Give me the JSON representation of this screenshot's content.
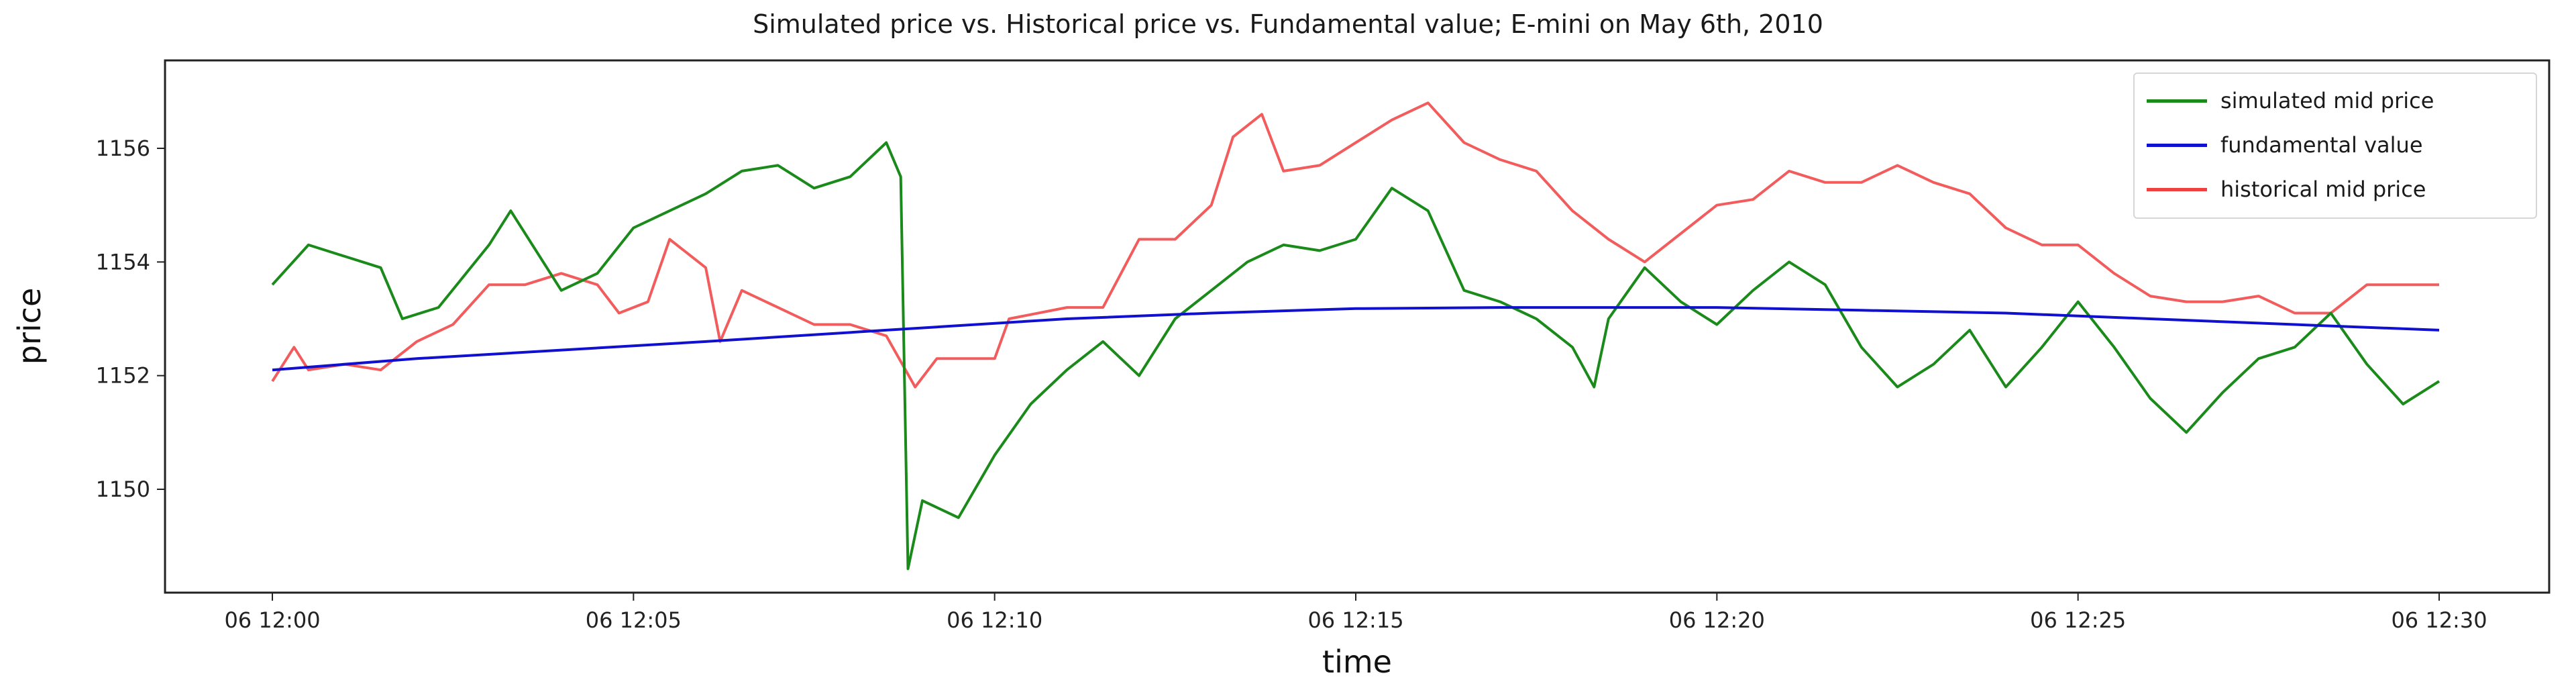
{
  "chart_data": {
    "type": "line",
    "title": "Simulated price vs. Historical price vs. Fundamental value; E-mini on May 6th, 2010",
    "xlabel": "time",
    "ylabel": "price",
    "x_unit": "minutes after 06 12:00",
    "xlim": [
      -1.5,
      31.5
    ],
    "ylim": [
      1147.9,
      1157.3
    ],
    "x_ticks": [
      0,
      5,
      10,
      15,
      20,
      25,
      30
    ],
    "x_tick_labels": [
      "06 12:00",
      "06 12:05",
      "06 12:10",
      "06 12:15",
      "06 12:20",
      "06 12:25",
      "06 12:30"
    ],
    "y_ticks": [
      1150,
      1152,
      1154,
      1156
    ],
    "y_tick_labels": [
      "1150",
      "1152",
      "1154",
      "1156"
    ],
    "grid": false,
    "legend_position": "upper right",
    "series": [
      {
        "name": "simulated mid price",
        "color": "#1a8a1a",
        "x": [
          0,
          0.5,
          1,
          1.5,
          1.8,
          2.3,
          3,
          3.3,
          4,
          4.5,
          5,
          5.5,
          6,
          6.5,
          7,
          7.5,
          8,
          8.5,
          8.7,
          8.8,
          9,
          9.5,
          10,
          10.5,
          11,
          11.5,
          12,
          12.5,
          13,
          13.5,
          14,
          14.5,
          15,
          15.5,
          16,
          16.5,
          17,
          17.5,
          18,
          18.3,
          18.5,
          19,
          19.5,
          20,
          20.5,
          21,
          21.5,
          22,
          22.5,
          23,
          23.5,
          24,
          24.5,
          25,
          25.5,
          26,
          26.5,
          27,
          27.5,
          28,
          28.5,
          29,
          29.5,
          30
        ],
        "values": [
          1153.6,
          1154.3,
          1154.1,
          1153.9,
          1153.0,
          1153.2,
          1154.3,
          1154.9,
          1153.5,
          1153.8,
          1154.6,
          1154.9,
          1155.2,
          1155.6,
          1155.7,
          1155.3,
          1155.5,
          1156.1,
          1155.5,
          1148.6,
          1149.8,
          1149.5,
          1150.6,
          1151.5,
          1152.1,
          1152.6,
          1152.0,
          1153.0,
          1153.5,
          1154.0,
          1154.3,
          1154.2,
          1154.4,
          1155.3,
          1154.9,
          1153.5,
          1153.3,
          1153.0,
          1152.5,
          1151.8,
          1153.0,
          1153.9,
          1153.3,
          1152.9,
          1153.5,
          1154.0,
          1153.6,
          1152.5,
          1151.8,
          1152.2,
          1152.8,
          1151.8,
          1152.5,
          1153.3,
          1152.5,
          1151.6,
          1151.0,
          1151.7,
          1152.3,
          1152.5,
          1153.1,
          1152.2,
          1151.5,
          1151.9
        ]
      },
      {
        "name": "fundamental value",
        "color": "#1010d0",
        "x": [
          0,
          2,
          4,
          6,
          8.5,
          11,
          13,
          15,
          17,
          20,
          22,
          24,
          26,
          28,
          30
        ],
        "values": [
          1152.1,
          1152.3,
          1152.45,
          1152.6,
          1152.8,
          1153.0,
          1153.1,
          1153.18,
          1153.2,
          1153.2,
          1153.15,
          1153.1,
          1153.0,
          1152.9,
          1152.8
        ]
      },
      {
        "name": "historical mid price",
        "color": "#f04040",
        "x": [
          0,
          0.3,
          0.5,
          1,
          1.5,
          2,
          2.5,
          3,
          3.5,
          4,
          4.5,
          4.8,
          5.2,
          5.5,
          6,
          6.2,
          6.5,
          7,
          7.5,
          8,
          8.5,
          8.9,
          9.2,
          10,
          10.2,
          11,
          11.5,
          12,
          12.5,
          13,
          13.3,
          13.7,
          14,
          14.5,
          15,
          15.5,
          16,
          16.5,
          17,
          17.5,
          18,
          18.5,
          19,
          19.5,
          20,
          20.5,
          21,
          21.5,
          22,
          22.5,
          23,
          23.5,
          24,
          24.5,
          25,
          25.5,
          26,
          26.5,
          27,
          27.5,
          28,
          28.5,
          29,
          30
        ],
        "values": [
          1151.9,
          1152.5,
          1152.1,
          1152.2,
          1152.1,
          1152.6,
          1152.9,
          1153.6,
          1153.6,
          1153.8,
          1153.6,
          1153.1,
          1153.3,
          1154.4,
          1153.9,
          1152.6,
          1153.5,
          1153.2,
          1152.9,
          1152.9,
          1152.7,
          1151.8,
          1152.3,
          1152.3,
          1153.0,
          1153.2,
          1153.2,
          1154.4,
          1154.4,
          1155.0,
          1156.2,
          1156.6,
          1155.6,
          1155.7,
          1156.1,
          1156.5,
          1156.8,
          1156.1,
          1155.8,
          1155.6,
          1154.9,
          1154.4,
          1154.0,
          1154.5,
          1155.0,
          1155.1,
          1155.6,
          1155.4,
          1155.4,
          1155.7,
          1155.4,
          1155.2,
          1154.6,
          1154.3,
          1154.3,
          1153.8,
          1153.4,
          1153.3,
          1153.3,
          1153.4,
          1153.1,
          1153.1,
          1153.6,
          1153.6
        ]
      }
    ]
  },
  "legend": {
    "items": [
      {
        "label": "simulated mid price",
        "color": "#1a8a1a"
      },
      {
        "label": "fundamental value",
        "color": "#1010d0"
      },
      {
        "label": "historical mid price",
        "color": "#f04040"
      }
    ]
  }
}
